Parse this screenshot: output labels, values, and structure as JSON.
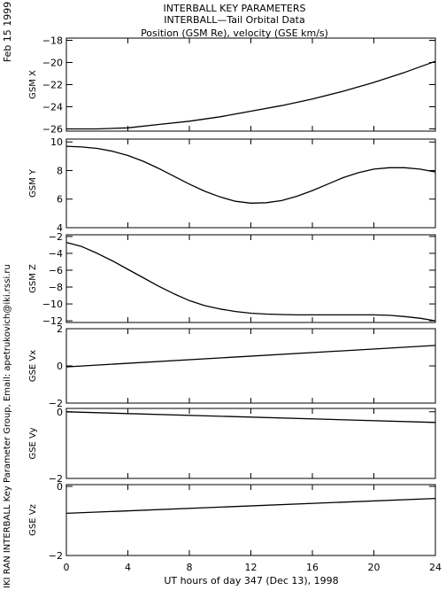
{
  "header": {
    "title": "INTERBALL KEY PARAMETERS",
    "subtitle": "INTERBALL—Tail Orbital Data",
    "units_line": "Position (GSM Re), velocity (GSE km/s)"
  },
  "side": {
    "date": "Feb 15 1999",
    "credit": "IKI RAN INTERBALL Key Parameter Group, Email: apetrukovich@iki.rssi.ru"
  },
  "chart_data": {
    "type": "line",
    "xlabel": "UT hours of day 347 (Dec 13), 1998",
    "xlim": [
      0,
      24
    ],
    "xticks": [
      0,
      4,
      8,
      12,
      16,
      20,
      24
    ],
    "panels": [
      {
        "ylabel": "GSM X",
        "ylim": [
          -26.2,
          -17.8
        ],
        "yticks": [
          -26,
          -24,
          -22,
          -20,
          -18
        ],
        "x": [
          0,
          2,
          4,
          6,
          8,
          10,
          12,
          14,
          16,
          18,
          20,
          22,
          24
        ],
        "y": [
          -26.0,
          -26.0,
          -25.9,
          -25.6,
          -25.3,
          -24.9,
          -24.4,
          -23.9,
          -23.3,
          -22.6,
          -21.8,
          -20.9,
          -19.9
        ]
      },
      {
        "ylabel": "GSM Y",
        "ylim": [
          4,
          10.2
        ],
        "yticks": [
          4,
          6,
          8,
          10
        ],
        "x": [
          0,
          1,
          2,
          3,
          4,
          5,
          6,
          7,
          8,
          9,
          10,
          11,
          12,
          13,
          14,
          15,
          16,
          17,
          18,
          19,
          20,
          21,
          22,
          23,
          24
        ],
        "y": [
          9.7,
          9.65,
          9.55,
          9.35,
          9.05,
          8.65,
          8.15,
          7.6,
          7.05,
          6.55,
          6.15,
          5.85,
          5.72,
          5.75,
          5.9,
          6.2,
          6.6,
          7.05,
          7.5,
          7.85,
          8.1,
          8.2,
          8.2,
          8.1,
          7.9
        ]
      },
      {
        "ylabel": "GSM Z",
        "ylim": [
          -12.2,
          -1.8
        ],
        "yticks": [
          -12,
          -10,
          -8,
          -6,
          -4,
          -2
        ],
        "x": [
          0,
          1,
          2,
          3,
          4,
          5,
          6,
          7,
          8,
          9,
          10,
          11,
          12,
          13,
          14,
          15,
          16,
          17,
          18,
          19,
          20,
          21,
          22,
          23,
          24
        ],
        "y": [
          -2.7,
          -3.2,
          -4.0,
          -4.9,
          -5.9,
          -6.9,
          -7.9,
          -8.8,
          -9.6,
          -10.2,
          -10.6,
          -10.9,
          -11.1,
          -11.2,
          -11.25,
          -11.3,
          -11.3,
          -11.3,
          -11.3,
          -11.3,
          -11.3,
          -11.35,
          -11.5,
          -11.7,
          -12.0
        ]
      },
      {
        "ylabel": "GSE Vx",
        "ylim": [
          -2,
          2
        ],
        "yticks": [
          -2,
          0,
          2
        ],
        "x": [
          0,
          24
        ],
        "y": [
          -0.05,
          1.1
        ]
      },
      {
        "ylabel": "GSE Vy",
        "ylim": [
          -2,
          0.1
        ],
        "yticks": [
          -2,
          0
        ],
        "x": [
          0,
          24
        ],
        "y": [
          0.0,
          -0.32
        ]
      },
      {
        "ylabel": "GSE Vz",
        "ylim": [
          -2,
          0.05
        ],
        "yticks": [
          -2,
          0
        ],
        "x": [
          0,
          24
        ],
        "y": [
          -0.78,
          -0.35
        ]
      }
    ]
  }
}
